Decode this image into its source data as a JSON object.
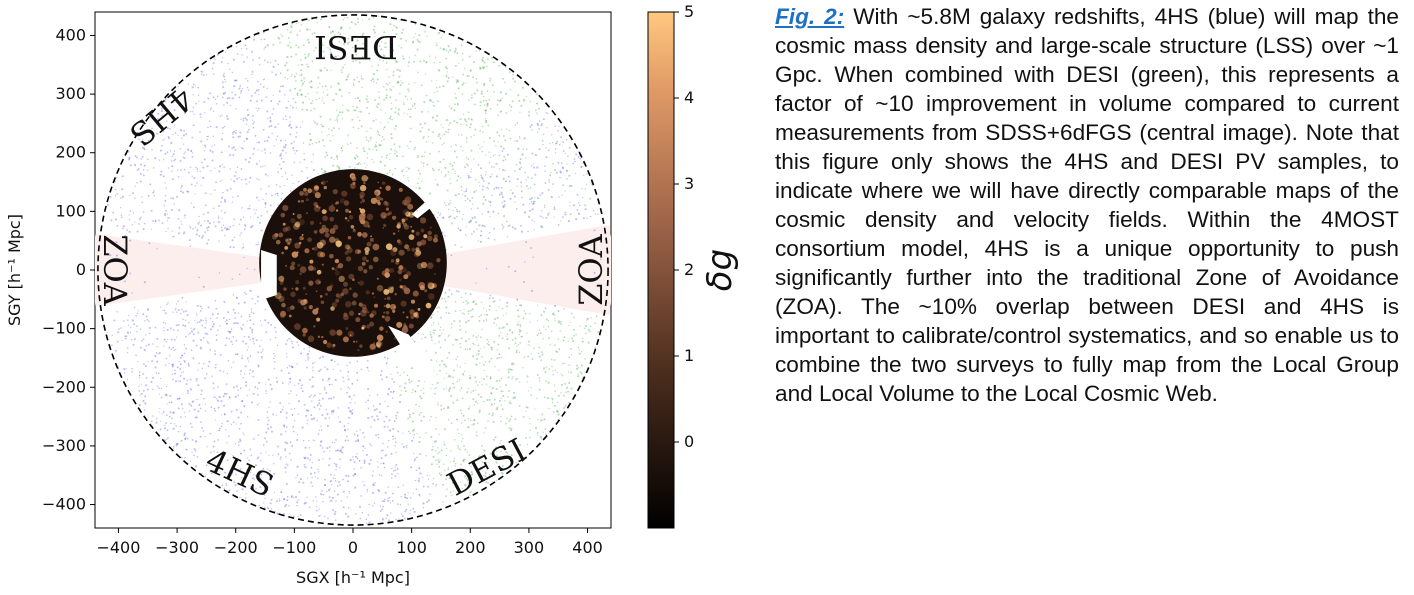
{
  "caption": {
    "fig_label": "Fig. 2:",
    "text": " With ~5.8M galaxy redshifts, 4HS (blue) will map the cosmic mass density and large-scale structure (LSS) over ~1 Gpc. When combined with DESI (green), this represents a factor of ~10 improvement in volume compared to current measurements from SDSS+6dFGS (central image). Note that this figure only shows the 4HS and DESI PV samples, to indicate where we will have directly comparable maps of the cosmic density and velocity fields. Within the 4MOST consortium model, 4HS is a unique opportunity to push significantly further into the traditional Zone of Avoidance (ZOA). The ~10% overlap between DESI and 4HS is important to calibrate/control systematics, and so enable us to combine the two surveys to fully map from the Local Group and Local Volume to the Local Cosmic Web."
  },
  "chart_data": {
    "type": "scatter",
    "xlabel": "SGX [h⁻¹ Mpc]",
    "ylabel": "SGY [h⁻¹ Mpc]",
    "xlim": [
      -440,
      440
    ],
    "ylim": [
      -440,
      440
    ],
    "xticks": [
      -400,
      -300,
      -200,
      -100,
      0,
      100,
      200,
      300,
      400
    ],
    "yticks": [
      -400,
      -300,
      -200,
      -100,
      0,
      100,
      200,
      300,
      400
    ],
    "survey_radius": 435,
    "central_map_radius": 160,
    "series": [
      {
        "name": "4HS",
        "color": "#2a2ae0"
      },
      {
        "name": "DESI",
        "color": "#2e9a2e"
      }
    ],
    "annotations": [
      "DESI",
      "4HS",
      "ZOA",
      "ZOA",
      "4HS",
      "DESI"
    ],
    "colorbar": {
      "label": "δg",
      "range": [
        -1,
        5
      ],
      "ticks": [
        0,
        1,
        2,
        3,
        4,
        5
      ],
      "colormap": "copper"
    }
  }
}
